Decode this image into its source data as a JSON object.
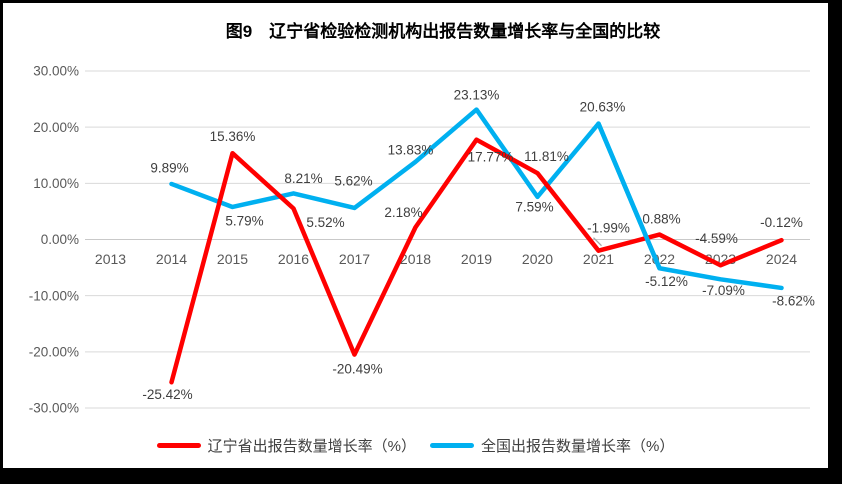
{
  "window": {
    "background": "#000000",
    "canvas_background": "#ffffff"
  },
  "chart_data": {
    "type": "line",
    "title": "图9　辽宁省检验检测机构出报告数量增长率与全国的比较",
    "categories": [
      "2013",
      "2014",
      "2015",
      "2016",
      "2017",
      "2018",
      "2019",
      "2020",
      "2021",
      "2022",
      "2023",
      "2024"
    ],
    "x_start_index": 1,
    "series": [
      {
        "name": "辽宁省出报告数量增长率（%）",
        "color": "#FF0000",
        "values": [
          -25.42,
          15.36,
          5.52,
          -20.49,
          2.18,
          17.77,
          11.81,
          -1.99,
          0.88,
          -4.59,
          -0.12
        ],
        "data_labels": [
          "-25.42%",
          "15.36%",
          "5.52%",
          "-20.49%",
          "2.18%",
          "17.77%",
          "11.81%",
          "-1.99%",
          "0.88%",
          "-4.59%",
          "-0.12%"
        ]
      },
      {
        "name": "全国出报告数量增长率（%）",
        "color": "#00B0F0",
        "values": [
          9.89,
          5.79,
          8.21,
          5.62,
          13.83,
          23.13,
          7.59,
          20.63,
          -5.12,
          -7.09,
          -8.62
        ],
        "data_labels": [
          "9.89%",
          "5.79%",
          "8.21%",
          "5.62%",
          "13.83%",
          "23.13%",
          "7.59%",
          "20.63%",
          "-5.12%",
          "-7.09%",
          "-8.62%"
        ]
      }
    ],
    "ylim": [
      -30,
      30
    ],
    "ytick_step": 10,
    "ytick_labels": [
      "30.00%",
      "20.00%",
      "10.00%",
      "0.00%",
      "-10.00%",
      "-20.00%",
      "-30.00%"
    ],
    "grid": true,
    "legend_position": "bottom",
    "line_width": 4.5,
    "colors": {
      "gridline": "#d9d9d9",
      "zero_line": "#c9c9c9",
      "axis_text": "#595959",
      "data_label_text": "#3f3f3f",
      "title_text": "#000000",
      "leader_line": "#a6a6a6"
    },
    "layout_hints": {
      "label_offsets": {
        "0": [
          [
            -4,
            12
          ],
          [
            0,
            -17
          ],
          [
            32,
            14
          ],
          [
            3,
            14
          ],
          [
            -12,
            -15
          ],
          [
            14,
            17
          ],
          [
            9,
            -17
          ],
          [
            10,
            -23
          ],
          [
            2,
            -16
          ],
          [
            -4,
            -27
          ],
          [
            0,
            -18
          ]
        ],
        "1": [
          [
            -2,
            -16
          ],
          [
            12,
            14
          ],
          [
            10,
            -15
          ],
          [
            -1,
            -27
          ],
          [
            -5,
            -12
          ],
          [
            0,
            -15
          ],
          [
            -3,
            10
          ],
          [
            4,
            -17
          ],
          [
            7,
            13
          ],
          [
            3,
            11
          ],
          [
            12,
            13
          ]
        ]
      },
      "draw_order": [
        1,
        0
      ],
      "overlay_segments": [
        {
          "series": 1,
          "from": 7,
          "to": 8
        }
      ],
      "leader_lines": [
        {
          "series": 0,
          "point": 7,
          "dx1": -5,
          "dy1": -13,
          "dx2": 3,
          "dy2": -5
        }
      ]
    }
  }
}
